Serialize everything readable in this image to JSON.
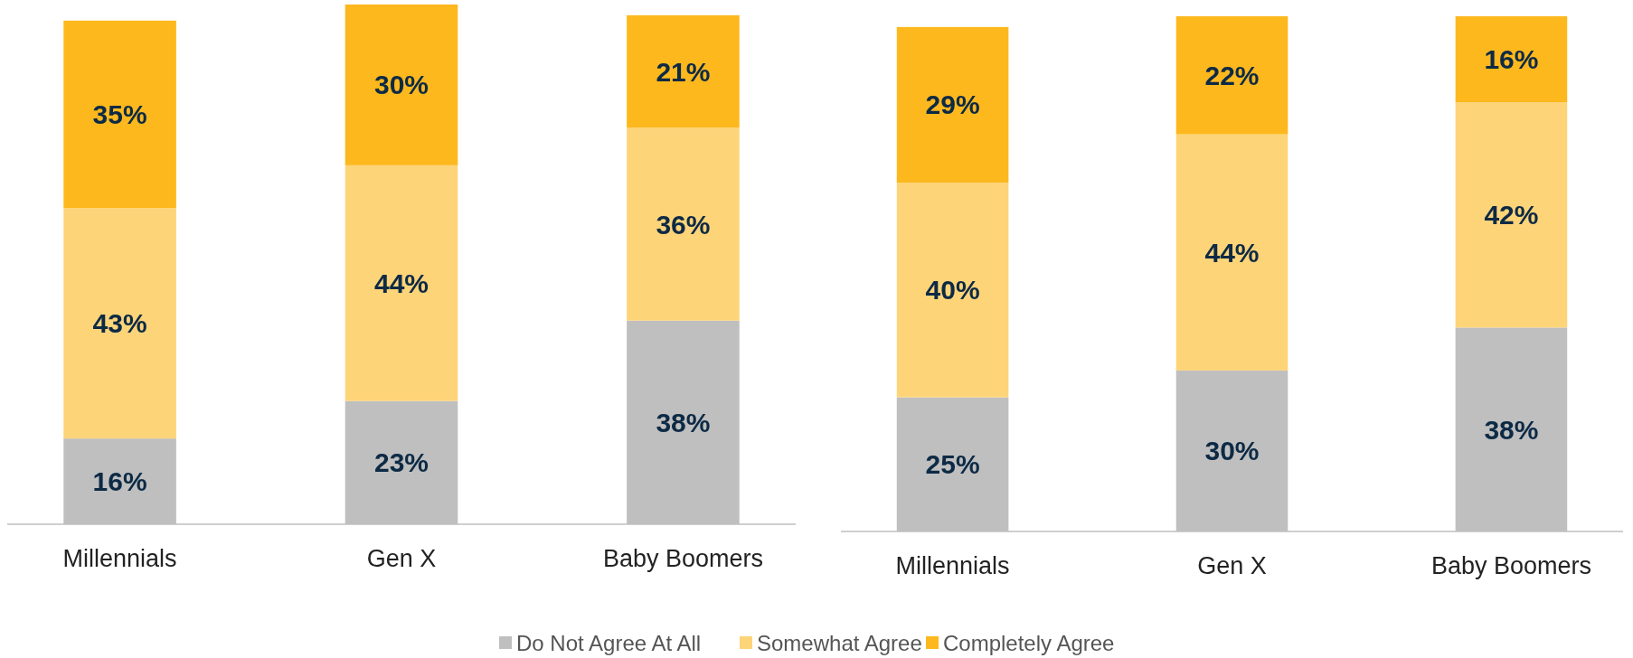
{
  "chart_data": [
    {
      "type": "bar",
      "stacked": true,
      "categories": [
        "Millennials",
        "Gen X",
        "Baby Boomers"
      ],
      "series": [
        {
          "color": "#bfbfbf",
          "values": [
            16,
            23,
            38
          ],
          "value_labels": [
            "16%",
            "23%",
            "38%"
          ]
        },
        {
          "color": "#fed479",
          "values": [
            43,
            44,
            36
          ],
          "value_labels": [
            "43%",
            "44%",
            "36%"
          ]
        },
        {
          "color": "#fdb81e",
          "values": [
            35,
            30,
            21
          ],
          "value_labels": [
            "35%",
            "30%",
            "21%"
          ]
        }
      ]
    },
    {
      "type": "bar",
      "stacked": true,
      "categories": [
        "Millennials",
        "Gen X",
        "Baby Boomers"
      ],
      "series": [
        {
          "name": "Do Not Agree At All",
          "color": "#bfbfbf",
          "values": [
            25,
            30,
            38
          ],
          "value_labels": [
            "25%",
            "30%",
            "38%"
          ]
        },
        {
          "name": "Somewhat Agree",
          "color": "#fed479",
          "values": [
            40,
            44,
            42
          ],
          "value_labels": [
            "40%",
            "44%",
            "42%"
          ]
        },
        {
          "name": "Completely Agree",
          "color": "#fdb81e",
          "values": [
            29,
            22,
            16
          ],
          "value_labels": [
            "29%",
            "22%",
            "16%"
          ]
        }
      ],
      "legend": "bottom"
    }
  ]
}
